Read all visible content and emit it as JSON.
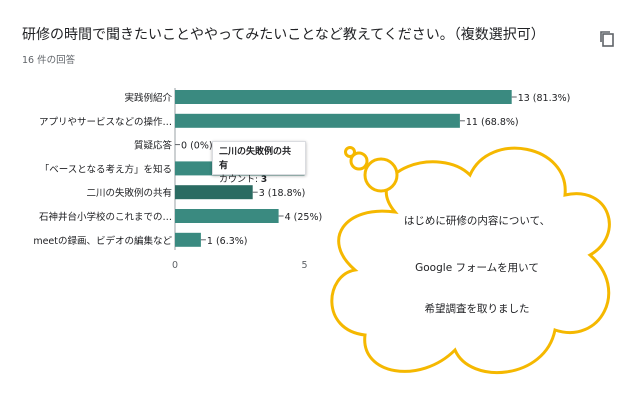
{
  "question": {
    "title": "研修の時間で聞きたいことややってみたいことなど教えてください。（複数選択可）",
    "response_count": "16 件の回答"
  },
  "chart_data": {
    "type": "bar",
    "orientation": "horizontal",
    "categories": [
      "実践例紹介",
      "アプリやサービスなどの操作…",
      "質疑応答",
      "「ベースとなる考え方」を知る",
      "二川の失敗例の共有",
      "石神井台小学校のこれまでの…",
      "meetの録画、ビデオの編集など"
    ],
    "values": [
      13,
      11,
      0,
      5,
      3,
      4,
      1
    ],
    "value_labels": [
      "13 (81.3%)",
      "11 (68.8%)",
      "0 (0%)",
      "",
      "3 (18.8%)",
      "4 (25%)",
      "1 (6.3%)"
    ],
    "xticks": [
      "0",
      "5"
    ],
    "xlim": [
      0,
      16
    ],
    "bar_color": "#3a8a80",
    "highlight_index": 4,
    "highlight_color": "#2a6b62"
  },
  "tooltip": {
    "title": "二川の失敗例の共有",
    "label": "カウント: ",
    "value": "3"
  },
  "callout": {
    "lines": [
      "はじめに研修の内容について、",
      "Google フォームを用いて",
      "希望調査を取りました"
    ],
    "border_color": "#f5b800"
  }
}
